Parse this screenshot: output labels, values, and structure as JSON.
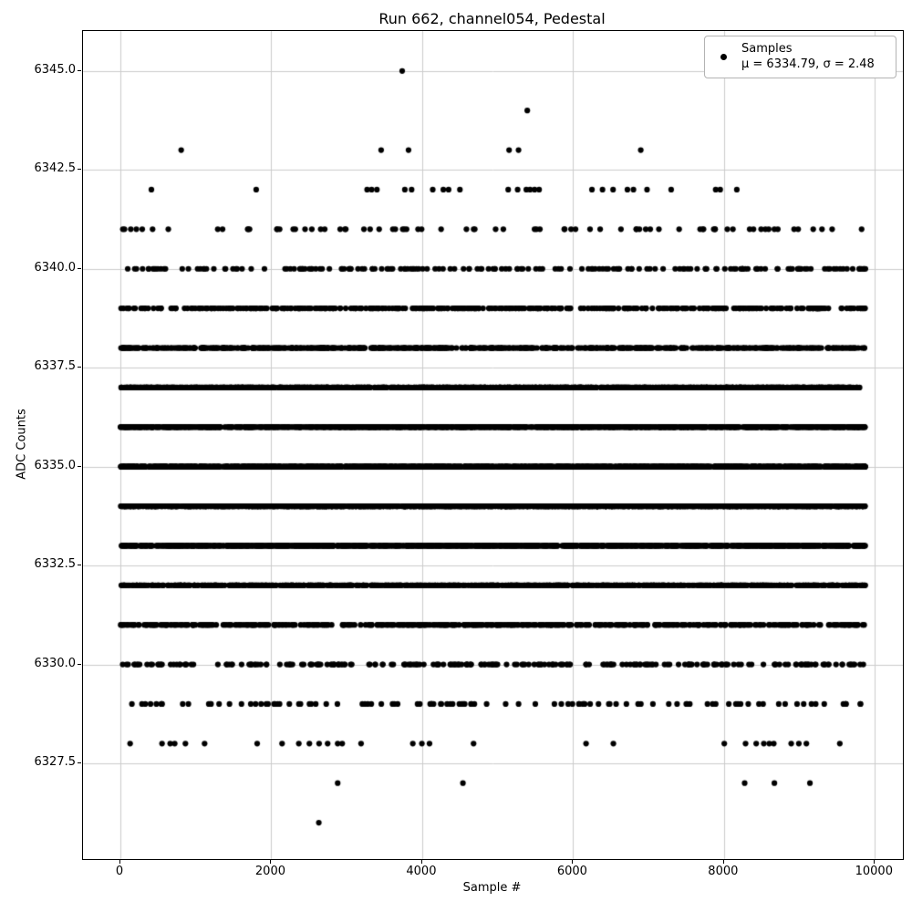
{
  "chart_data": {
    "type": "scatter",
    "title": "Run 662, channel054, Pedestal",
    "xlabel": "Sample #",
    "ylabel": "ADC Counts",
    "grid": true,
    "grid_color": "#cccccc",
    "axes_edge_color": "#000000",
    "marker_color": "#000000",
    "marker_radius_px": 3.1,
    "xlim": [
      -495.6,
      10371
    ],
    "ylim": [
      6325.08,
      6346.01
    ],
    "x_data_range": [
      0,
      9875
    ],
    "n_samples_approx": 9900,
    "xticks": [
      {
        "value": 0,
        "label": "0"
      },
      {
        "value": 2000,
        "label": "2000"
      },
      {
        "value": 4000,
        "label": "4000"
      },
      {
        "value": 6000,
        "label": "6000"
      },
      {
        "value": 8000,
        "label": "8000"
      },
      {
        "value": 10000,
        "label": "10000"
      }
    ],
    "yticks": [
      {
        "value": 6327.5,
        "label": "6327.5"
      },
      {
        "value": 6330.0,
        "label": "6330.0"
      },
      {
        "value": 6332.5,
        "label": "6332.5"
      },
      {
        "value": 6335.0,
        "label": "6335.0"
      },
      {
        "value": 6337.5,
        "label": "6337.5"
      },
      {
        "value": 6340.0,
        "label": "6340.0"
      },
      {
        "value": 6342.5,
        "label": "6342.5"
      },
      {
        "value": 6345.0,
        "label": "6345.0"
      }
    ],
    "legend": {
      "position": "upper right",
      "title_line": "Samples",
      "stats_line": "μ = 6334.79, σ = 2.48",
      "mu": 6334.79,
      "sigma": 2.48
    },
    "series_generated": [
      {
        "adc": 6341,
        "count": 78
      },
      {
        "adc": 6340,
        "count": 185
      },
      {
        "adc": 6339,
        "count": 390
      },
      {
        "adc": 6338,
        "count": 705
      },
      {
        "adc": 6337,
        "count": 1065
      },
      {
        "adc": 6336,
        "count": 1410
      },
      {
        "adc": 6335,
        "count": 1575
      },
      {
        "adc": 6334,
        "count": 1505
      },
      {
        "adc": 6333,
        "count": 1215
      },
      {
        "adc": 6332,
        "count": 860
      },
      {
        "adc": 6331,
        "count": 495
      },
      {
        "adc": 6330,
        "count": 250
      },
      {
        "adc": 6329,
        "count": 110
      }
    ],
    "series_explicit": [
      {
        "adc": 6345,
        "x": [
          3735
        ]
      },
      {
        "adc": 6344,
        "x": [
          5393
        ]
      },
      {
        "adc": 6343,
        "x": [
          806,
          3456,
          3819,
          5152,
          5277,
          6897
        ]
      },
      {
        "adc": 6342,
        "x": [
          411,
          1800,
          3270,
          3330,
          3400,
          3770,
          3860,
          4140,
          4280,
          4350,
          4500,
          5140,
          5265,
          5380,
          5430,
          5490,
          5550,
          6250,
          6390,
          6530,
          6720,
          6800,
          6980,
          7300,
          7890,
          7950,
          8170
        ]
      },
      {
        "adc": 6328,
        "x": [
          129,
          552,
          660,
          720,
          862,
          1116,
          1813,
          2143,
          2365,
          2505,
          2634,
          2747,
          2880,
          2940,
          3190,
          3876,
          3996,
          4097,
          4681,
          6172,
          6534,
          8004,
          8286,
          8427,
          8528,
          8600,
          8660,
          8891,
          8992,
          9092,
          9535
        ]
      },
      {
        "adc": 6327,
        "x": [
          2880,
          4540,
          8274,
          8668,
          9139
        ]
      },
      {
        "adc": 6326,
        "x": [
          2630
        ]
      }
    ]
  }
}
